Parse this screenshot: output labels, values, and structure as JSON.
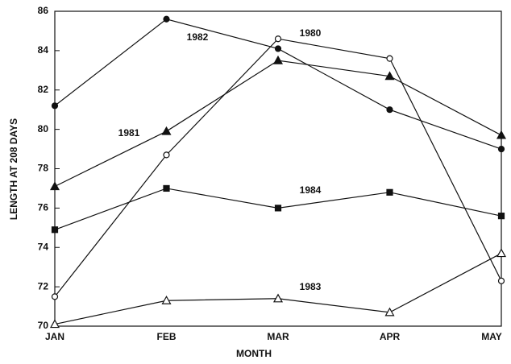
{
  "chart_data": {
    "type": "line",
    "x_label": "MONTH",
    "y_label": "LENGTH AT 208 DAYS",
    "categories": [
      "JAN",
      "FEB",
      "MAR",
      "APR",
      "MAY"
    ],
    "ylim": [
      70,
      86
    ],
    "yticks": [
      70,
      72,
      74,
      76,
      78,
      80,
      82,
      84,
      86
    ],
    "series": [
      {
        "name": "1980",
        "color": "#111111",
        "marker": "circle",
        "filled": false,
        "values": [
          71.5,
          78.7,
          84.6,
          83.6,
          72.3
        ]
      },
      {
        "name": "1981",
        "color": "#111111",
        "marker": "triangle",
        "filled": true,
        "values": [
          77.1,
          79.9,
          83.5,
          82.7,
          79.7
        ]
      },
      {
        "name": "1982",
        "color": "#111111",
        "marker": "circle",
        "filled": true,
        "values": [
          81.2,
          85.6,
          84.1,
          81.0,
          79.0
        ]
      },
      {
        "name": "1983",
        "color": "#111111",
        "marker": "triangle",
        "filled": false,
        "values": [
          70.1,
          71.3,
          71.4,
          70.7,
          73.7
        ]
      },
      {
        "name": "1984",
        "color": "#111111",
        "marker": "square",
        "filled": true,
        "values": [
          74.9,
          77.0,
          76.0,
          76.8,
          75.6
        ]
      }
    ]
  }
}
